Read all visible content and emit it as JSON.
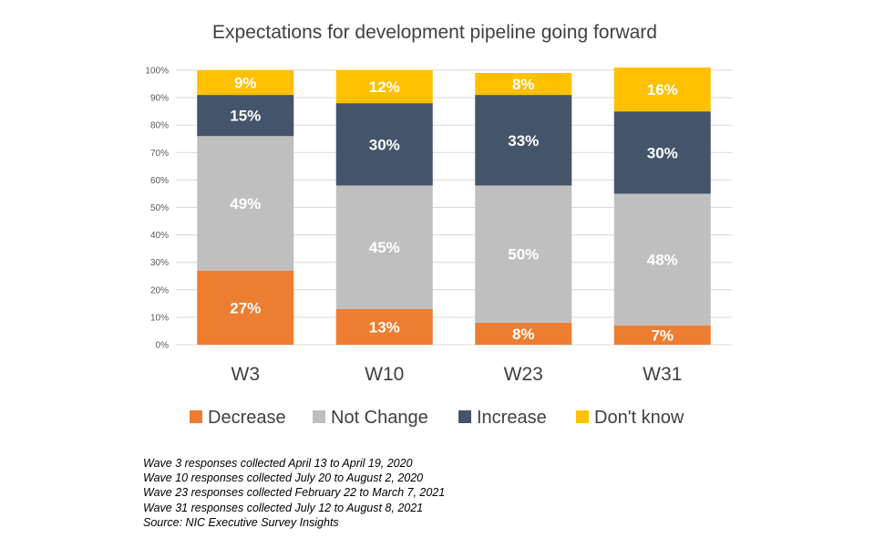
{
  "chart_data": {
    "type": "bar",
    "stacked": true,
    "title": "Expectations for development pipeline going forward",
    "categories": [
      "W3",
      "W10",
      "W23",
      "W31"
    ],
    "series": [
      {
        "name": "Decrease",
        "color": "#ED7D31",
        "values": [
          27,
          13,
          8,
          7
        ],
        "labels": [
          "27%",
          "13%",
          "8%",
          "7%"
        ]
      },
      {
        "name": "Not Change",
        "color": "#BFBFBF",
        "values": [
          49,
          45,
          50,
          48
        ],
        "labels": [
          "49%",
          "45%",
          "50%",
          "48%"
        ]
      },
      {
        "name": "Increase",
        "color": "#44546A",
        "values": [
          15,
          30,
          33,
          30
        ],
        "labels": [
          "15%",
          "30%",
          "33%",
          "30%"
        ]
      },
      {
        "name": "Don't know",
        "color": "#FFC000",
        "values": [
          9,
          12,
          8,
          16
        ],
        "labels": [
          "9%",
          "12%",
          "8%",
          "16%"
        ]
      }
    ],
    "ylim": [
      0,
      100
    ],
    "yticks": [
      "0%",
      "10%",
      "20%",
      "30%",
      "40%",
      "50%",
      "60%",
      "70%",
      "80%",
      "90%",
      "100%"
    ],
    "grid": true,
    "legend": "bottom"
  },
  "notes": [
    "Wave 3 responses collected April 13 to April 19, 2020",
    "Wave 10 responses collected July 20 to August 2, 2020",
    "Wave 23 responses collected February 22 to March 7, 2021",
    "Wave 31 responses collected July 12 to August 8, 2021",
    "Source: NIC Executive Survey Insights"
  ]
}
